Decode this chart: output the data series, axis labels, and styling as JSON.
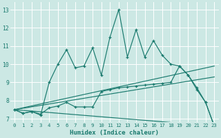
{
  "xlabel": "Humidex (Indice chaleur)",
  "xlim": [
    -0.5,
    23.5
  ],
  "ylim": [
    6.8,
    13.4
  ],
  "yticks": [
    7,
    8,
    9,
    10,
    11,
    12,
    13
  ],
  "xticks": [
    0,
    1,
    2,
    3,
    4,
    5,
    6,
    7,
    8,
    9,
    10,
    11,
    12,
    13,
    14,
    15,
    16,
    17,
    18,
    19,
    20,
    21,
    22,
    23
  ],
  "bg_color": "#cce8e4",
  "line_color": "#1a7a6e",
  "grid_color": "#ffffff",
  "line1_spiky": {
    "x": [
      0,
      1,
      2,
      3,
      4,
      5,
      6,
      7,
      8,
      9,
      10,
      11,
      12,
      13,
      14,
      15,
      16,
      17,
      18,
      19,
      20,
      21,
      22,
      23
    ],
    "y": [
      7.5,
      7.3,
      7.4,
      7.2,
      9.0,
      10.0,
      10.8,
      9.8,
      9.9,
      10.9,
      9.4,
      11.5,
      13.0,
      10.4,
      11.9,
      10.4,
      11.3,
      10.5,
      10.0,
      9.9,
      9.4,
      8.6,
      7.9,
      6.6
    ]
  },
  "line2_smooth": {
    "x": [
      0,
      1,
      2,
      3,
      4,
      5,
      6,
      7,
      8,
      9,
      10,
      11,
      12,
      13,
      14,
      15,
      16,
      17,
      18,
      19,
      20,
      21,
      22,
      23
    ],
    "y": [
      7.5,
      7.3,
      7.4,
      7.25,
      7.6,
      7.7,
      7.9,
      7.65,
      7.65,
      7.65,
      8.5,
      8.6,
      8.7,
      8.75,
      8.8,
      8.85,
      8.9,
      8.95,
      9.0,
      9.9,
      9.4,
      8.7,
      7.9,
      6.6
    ]
  },
  "line3": {
    "x": [
      0,
      23
    ],
    "y": [
      7.5,
      9.9
    ]
  },
  "line4": {
    "x": [
      0,
      23
    ],
    "y": [
      7.5,
      9.3
    ]
  },
  "line5": {
    "x": [
      0,
      23
    ],
    "y": [
      7.5,
      6.6
    ]
  }
}
